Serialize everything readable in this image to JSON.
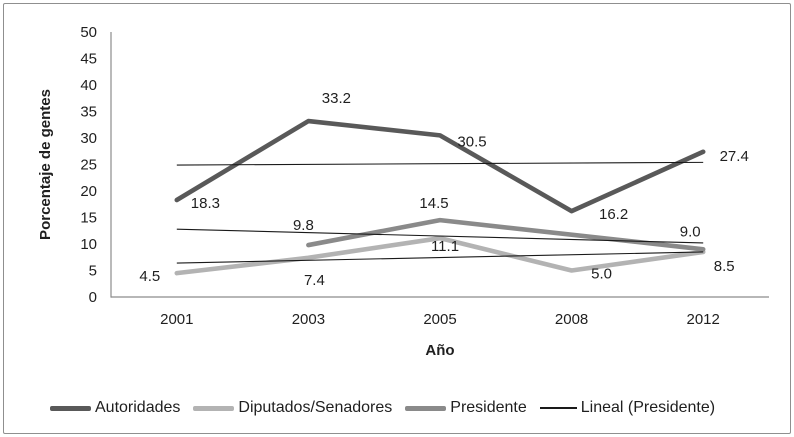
{
  "figure": {
    "border_color": "#8f8f8f",
    "background": "#ffffff",
    "axis_color": "#8c8c8c",
    "text_color": "#1f1f1f"
  },
  "chart_data": {
    "type": "line",
    "title": "",
    "xlabel": "Año",
    "ylabel": "Porcentaje de gentes",
    "ylim": [
      0,
      50
    ],
    "ytick_step": 5,
    "grid": false,
    "legend_position": "bottom",
    "categories": [
      "2001",
      "2003",
      "2005",
      "2008",
      "2012"
    ],
    "series": [
      {
        "name": "Autoridades",
        "color": "#595959",
        "stroke_width": 4.6,
        "values": [
          18.3,
          33.2,
          30.5,
          16.2,
          27.4
        ],
        "labels": [
          {
            "text": "18.3",
            "dx": 14,
            "dy": 8,
            "anchor": "start"
          },
          {
            "text": "33.2",
            "dx": 28,
            "dy": -18,
            "anchor": "middle"
          },
          {
            "text": "30.5",
            "dx": 32,
            "dy": 11,
            "anchor": "middle"
          },
          {
            "text": "16.2",
            "dx": 42,
            "dy": 8,
            "anchor": "middle"
          },
          {
            "text": "27.4",
            "dx": 31,
            "dy": 9,
            "anchor": "middle"
          }
        ]
      },
      {
        "name": "Diputados/Senadores",
        "color": "#b3b3b3",
        "stroke_width": 4.6,
        "values": [
          4.5,
          7.4,
          11.1,
          5.0,
          8.5
        ],
        "labels": [
          {
            "text": "4.5",
            "dx": -27,
            "dy": 8,
            "anchor": "middle"
          },
          {
            "text": "7.4",
            "dx": 6,
            "dy": 27,
            "anchor": "middle"
          },
          {
            "text": "11.1",
            "dx": 5,
            "dy": 13,
            "anchor": "middle"
          },
          {
            "text": "5.0",
            "dx": 30,
            "dy": 8,
            "anchor": "middle"
          },
          {
            "text": "8.5",
            "dx": 21,
            "dy": 19,
            "anchor": "middle"
          }
        ]
      },
      {
        "name": "Presidente",
        "color": "#8a8a8a",
        "stroke_width": 4.6,
        "values": [
          null,
          9.8,
          14.5,
          null,
          9.0
        ],
        "labels": [
          null,
          {
            "text": "9.8",
            "dx": -5,
            "dy": -15,
            "anchor": "middle"
          },
          {
            "text": "14.5",
            "dx": -6,
            "dy": -12,
            "anchor": "middle"
          },
          null,
          {
            "text": "9.0",
            "dx": -13,
            "dy": -13,
            "anchor": "middle"
          }
        ]
      }
    ],
    "trendlines": [
      {
        "name": "lineal-autoridades",
        "start_value": 24.9,
        "end_value": 25.4,
        "color": "#1a1a1a",
        "stroke_width": 1.1
      },
      {
        "name": "lineal-presidente",
        "start_value": 12.8,
        "end_value": 10.2,
        "color": "#1a1a1a",
        "stroke_width": 1.1
      },
      {
        "name": "lineal-diputados",
        "start_value": 6.4,
        "end_value": 8.5,
        "color": "#1a1a1a",
        "stroke_width": 1.1
      }
    ],
    "legend": [
      {
        "label": "Autoridades",
        "color": "#595959",
        "style": "thick"
      },
      {
        "label": "Diputados/Senadores",
        "color": "#b3b3b3",
        "style": "thick"
      },
      {
        "label": "Presidente",
        "color": "#8a8a8a",
        "style": "thick"
      },
      {
        "label": "Lineal (Presidente)",
        "color": "#1a1a1a",
        "style": "thin"
      }
    ]
  }
}
